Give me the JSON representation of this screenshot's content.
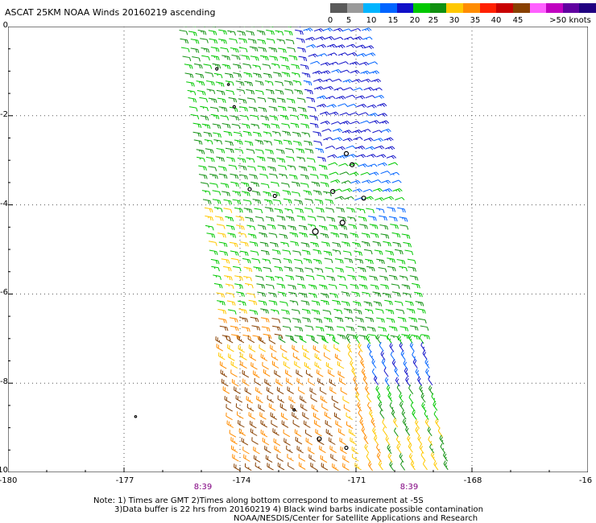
{
  "title": "ASCAT 25KM NOAA Winds 20160219 ascending",
  "legend": {
    "labels": [
      "0",
      "5",
      "10",
      "15",
      "20",
      "25",
      "30",
      "35",
      "40",
      "45",
      ">50 knots"
    ],
    "colors": [
      "#5a5a5a",
      "#9a9a9a",
      "#00b4ff",
      "#0064ff",
      "#1010c8",
      "#00c800",
      "#109010",
      "#ffc800",
      "#ff8c00",
      "#ff2000",
      "#c80000",
      "#884000",
      "#ff60ff",
      "#c000c0",
      "#6000a0",
      "#200080"
    ]
  },
  "map": {
    "lat_labels": [
      "0",
      "-2",
      "-4",
      "-6",
      "-8",
      "-10"
    ],
    "lon_labels": [
      "-180",
      "-177",
      "-174",
      "-171",
      "-168",
      "-16"
    ],
    "time_labels": [
      "8:39",
      "8:39"
    ]
  },
  "notes": {
    "line1": "Note: 1) Times are GMT 2)Times along bottom correspond to measurement at -5S",
    "line2": "3)Data buffer is 22 hrs from 20160219 4) Black wind barbs indicate possible contamination",
    "line3": "NOAA/NESDIS/Center for Satellite Applications and Research"
  }
}
